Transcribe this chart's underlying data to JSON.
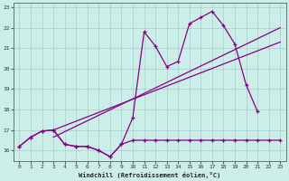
{
  "xlabel": "Windchill (Refroidissement éolien,°C)",
  "bg_color": "#cceee8",
  "grid_color": "#aacccc",
  "line_color": "#880088",
  "xlim": [
    -0.5,
    23.5
  ],
  "ylim": [
    15.5,
    23.2
  ],
  "xticks": [
    0,
    1,
    2,
    3,
    4,
    5,
    6,
    7,
    8,
    9,
    10,
    11,
    12,
    13,
    14,
    15,
    16,
    17,
    18,
    19,
    20,
    21,
    22,
    23
  ],
  "yticks": [
    16,
    17,
    18,
    19,
    20,
    21,
    22,
    23
  ],
  "x_all": [
    0,
    1,
    2,
    3,
    4,
    5,
    6,
    7,
    8,
    9,
    10,
    11,
    12,
    13,
    14,
    15,
    16,
    17,
    18,
    19,
    20,
    21,
    22,
    23
  ],
  "zigzag_y": [
    16.2,
    16.65,
    16.95,
    17.0,
    16.3,
    16.2,
    16.2,
    16.0,
    15.7,
    16.3,
    17.6,
    21.8,
    21.1,
    20.1,
    20.35,
    22.2,
    22.5,
    22.8,
    22.1,
    21.2,
    19.2,
    17.9,
    null,
    null
  ],
  "flat_x": [
    0,
    1,
    2,
    3,
    4,
    5,
    6,
    7,
    8,
    9,
    10,
    11,
    12,
    13,
    14,
    15,
    16,
    17,
    18,
    19,
    20,
    21,
    22,
    23
  ],
  "flat_y": [
    16.2,
    16.65,
    16.95,
    17.0,
    16.3,
    16.2,
    16.2,
    16.0,
    15.7,
    16.3,
    16.5,
    16.5,
    16.5,
    16.5,
    16.5,
    16.5,
    16.5,
    16.5,
    16.5,
    16.5,
    16.5,
    16.5,
    16.5,
    16.5
  ],
  "trend1_x": [
    3,
    23
  ],
  "trend1_y": [
    16.65,
    22.0
  ],
  "trend2_x": [
    3,
    23
  ],
  "trend2_y": [
    17.0,
    21.3
  ]
}
